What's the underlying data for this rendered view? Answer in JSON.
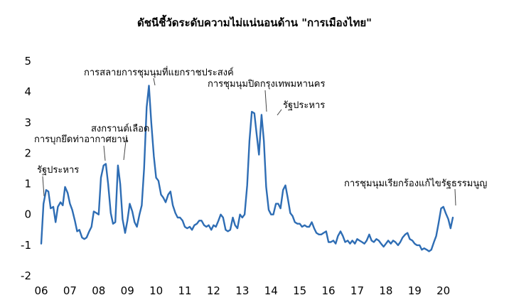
{
  "chart_data": {
    "type": "line",
    "title": "ดัชนีชี้วัดระดับความไม่แน่นอนด้าน \"การเมืองไทย\"",
    "xlabel": "",
    "ylabel": "",
    "ylim": [
      -2,
      5
    ],
    "yticks": [
      "-2",
      "-1",
      "0",
      "1",
      "2",
      "3",
      "4",
      "5"
    ],
    "xticks": [
      "06",
      "07",
      "08",
      "09",
      "10",
      "11",
      "12",
      "13",
      "14",
      "15",
      "16",
      "17",
      "18",
      "19",
      "20"
    ],
    "xlim": [
      2006.0,
      2020.75
    ],
    "grid": false,
    "legend": "none",
    "color": "#2e6db4",
    "series": [
      {
        "values": [
          [
            2006.0,
            -0.95
          ],
          [
            2006.08,
            0.35
          ],
          [
            2006.17,
            0.8
          ],
          [
            2006.25,
            0.75
          ],
          [
            2006.33,
            0.2
          ],
          [
            2006.42,
            0.25
          ],
          [
            2006.5,
            -0.25
          ],
          [
            2006.58,
            0.25
          ],
          [
            2006.67,
            0.4
          ],
          [
            2006.75,
            0.3
          ],
          [
            2006.83,
            0.9
          ],
          [
            2006.92,
            0.7
          ],
          [
            2007.0,
            0.35
          ],
          [
            2007.08,
            0.15
          ],
          [
            2007.17,
            -0.2
          ],
          [
            2007.25,
            -0.55
          ],
          [
            2007.33,
            -0.5
          ],
          [
            2007.42,
            -0.75
          ],
          [
            2007.5,
            -0.8
          ],
          [
            2007.58,
            -0.75
          ],
          [
            2007.67,
            -0.55
          ],
          [
            2007.75,
            -0.4
          ],
          [
            2007.83,
            0.1
          ],
          [
            2007.92,
            0.05
          ],
          [
            2008.0,
            0.0
          ],
          [
            2008.08,
            1.2
          ],
          [
            2008.17,
            1.6
          ],
          [
            2008.25,
            1.65
          ],
          [
            2008.33,
            1.0
          ],
          [
            2008.42,
            0.05
          ],
          [
            2008.5,
            -0.3
          ],
          [
            2008.58,
            -0.25
          ],
          [
            2008.67,
            1.6
          ],
          [
            2008.75,
            1.0
          ],
          [
            2008.83,
            -0.15
          ],
          [
            2008.92,
            -0.6
          ],
          [
            2009.0,
            -0.2
          ],
          [
            2009.08,
            0.35
          ],
          [
            2009.17,
            0.1
          ],
          [
            2009.25,
            -0.25
          ],
          [
            2009.33,
            -0.4
          ],
          [
            2009.42,
            0.0
          ],
          [
            2009.5,
            0.3
          ],
          [
            2009.58,
            1.5
          ],
          [
            2009.67,
            3.5
          ],
          [
            2009.75,
            4.2
          ],
          [
            2009.83,
            3.0
          ],
          [
            2009.92,
            1.9
          ],
          [
            2010.0,
            1.2
          ],
          [
            2010.08,
            1.1
          ],
          [
            2010.17,
            0.65
          ],
          [
            2010.25,
            0.55
          ],
          [
            2010.33,
            0.4
          ],
          [
            2010.42,
            0.65
          ],
          [
            2010.5,
            0.75
          ],
          [
            2010.58,
            0.3
          ],
          [
            2010.67,
            0.05
          ],
          [
            2010.75,
            -0.1
          ],
          [
            2010.83,
            -0.1
          ],
          [
            2010.92,
            -0.2
          ],
          [
            2011.0,
            -0.4
          ],
          [
            2011.08,
            -0.45
          ],
          [
            2011.17,
            -0.4
          ],
          [
            2011.25,
            -0.5
          ],
          [
            2011.33,
            -0.35
          ],
          [
            2011.42,
            -0.3
          ],
          [
            2011.5,
            -0.2
          ],
          [
            2011.58,
            -0.2
          ],
          [
            2011.67,
            -0.35
          ],
          [
            2011.75,
            -0.4
          ],
          [
            2011.83,
            -0.35
          ],
          [
            2011.92,
            -0.5
          ],
          [
            2012.0,
            -0.35
          ],
          [
            2012.08,
            -0.4
          ],
          [
            2012.17,
            -0.2
          ],
          [
            2012.25,
            0.0
          ],
          [
            2012.33,
            -0.1
          ],
          [
            2012.42,
            -0.5
          ],
          [
            2012.5,
            -0.55
          ],
          [
            2012.58,
            -0.5
          ],
          [
            2012.67,
            -0.1
          ],
          [
            2012.75,
            -0.35
          ],
          [
            2012.83,
            -0.45
          ],
          [
            2012.92,
            0.0
          ],
          [
            2013.0,
            -0.1
          ],
          [
            2013.08,
            0.0
          ],
          [
            2013.17,
            0.95
          ],
          [
            2013.25,
            2.4
          ],
          [
            2013.33,
            3.35
          ],
          [
            2013.42,
            3.3
          ],
          [
            2013.5,
            2.6
          ],
          [
            2013.58,
            1.95
          ],
          [
            2013.67,
            3.25
          ],
          [
            2013.75,
            2.4
          ],
          [
            2013.83,
            0.9
          ],
          [
            2013.92,
            0.15
          ],
          [
            2014.0,
            0.0
          ],
          [
            2014.08,
            0.0
          ],
          [
            2014.17,
            0.35
          ],
          [
            2014.25,
            0.35
          ],
          [
            2014.33,
            0.2
          ],
          [
            2014.42,
            0.8
          ],
          [
            2014.5,
            0.95
          ],
          [
            2014.58,
            0.55
          ],
          [
            2014.67,
            0.05
          ],
          [
            2014.75,
            -0.05
          ],
          [
            2014.83,
            -0.25
          ],
          [
            2014.92,
            -0.3
          ],
          [
            2015.0,
            -0.3
          ],
          [
            2015.08,
            -0.4
          ],
          [
            2015.17,
            -0.35
          ],
          [
            2015.25,
            -0.4
          ],
          [
            2015.33,
            -0.4
          ],
          [
            2015.42,
            -0.25
          ],
          [
            2015.5,
            -0.45
          ],
          [
            2015.58,
            -0.6
          ],
          [
            2015.67,
            -0.65
          ],
          [
            2015.75,
            -0.65
          ],
          [
            2015.83,
            -0.6
          ],
          [
            2015.92,
            -0.55
          ],
          [
            2016.0,
            -0.9
          ],
          [
            2016.08,
            -0.9
          ],
          [
            2016.17,
            -0.85
          ],
          [
            2016.25,
            -0.95
          ],
          [
            2016.33,
            -0.7
          ],
          [
            2016.42,
            -0.55
          ],
          [
            2016.5,
            -0.7
          ],
          [
            2016.58,
            -0.9
          ],
          [
            2016.67,
            -0.85
          ],
          [
            2016.75,
            -0.95
          ],
          [
            2016.83,
            -0.85
          ],
          [
            2016.92,
            -0.95
          ],
          [
            2017.0,
            -0.8
          ],
          [
            2017.08,
            -0.85
          ],
          [
            2017.17,
            -0.9
          ],
          [
            2017.25,
            -0.95
          ],
          [
            2017.33,
            -0.85
          ],
          [
            2017.42,
            -0.65
          ],
          [
            2017.5,
            -0.85
          ],
          [
            2017.58,
            -0.9
          ],
          [
            2017.67,
            -0.8
          ],
          [
            2017.75,
            -0.85
          ],
          [
            2017.83,
            -0.95
          ],
          [
            2017.92,
            -1.05
          ],
          [
            2018.0,
            -0.95
          ],
          [
            2018.08,
            -0.85
          ],
          [
            2018.17,
            -0.95
          ],
          [
            2018.25,
            -0.85
          ],
          [
            2018.33,
            -0.9
          ],
          [
            2018.42,
            -1.0
          ],
          [
            2018.5,
            -0.9
          ],
          [
            2018.58,
            -0.75
          ],
          [
            2018.67,
            -0.65
          ],
          [
            2018.75,
            -0.6
          ],
          [
            2018.83,
            -0.8
          ],
          [
            2018.92,
            -0.85
          ],
          [
            2019.0,
            -0.95
          ],
          [
            2019.08,
            -1.0
          ],
          [
            2019.17,
            -1.0
          ],
          [
            2019.25,
            -1.15
          ],
          [
            2019.33,
            -1.1
          ],
          [
            2019.42,
            -1.15
          ],
          [
            2019.5,
            -1.2
          ],
          [
            2019.58,
            -1.15
          ],
          [
            2019.67,
            -0.9
          ],
          [
            2019.75,
            -0.7
          ],
          [
            2019.83,
            -0.3
          ],
          [
            2019.92,
            0.2
          ],
          [
            2020.0,
            0.25
          ],
          [
            2020.08,
            0.05
          ],
          [
            2020.17,
            -0.15
          ],
          [
            2020.25,
            -0.45
          ],
          [
            2020.33,
            -0.1
          ]
        ]
      }
    ],
    "annotations": [
      {
        "text": "รัฐประหาร",
        "x": 2006.08,
        "y": 0.35
      },
      {
        "text": "การบุกยึดท่าอากาศยาน",
        "x": 2008.25,
        "y": 1.65
      },
      {
        "text": "สงกรานต์เลือด",
        "x": 2008.92,
        "y": 1.75
      },
      {
        "text": "การสลายการชุมนุมที่แยกราชประสงค์",
        "x": 2009.75,
        "y": 4.2
      },
      {
        "text": "การชุมนุมปิดกรุงเทพมหานคร",
        "x": 2013.33,
        "y": 3.35
      },
      {
        "text": "รัฐประหาร",
        "x": 2013.67,
        "y": 3.25
      },
      {
        "text": "การชุมนุมเรียกร้องแก้ไขรัฐธรรมนูญ",
        "x": 2020.0,
        "y": 0.25
      }
    ]
  }
}
